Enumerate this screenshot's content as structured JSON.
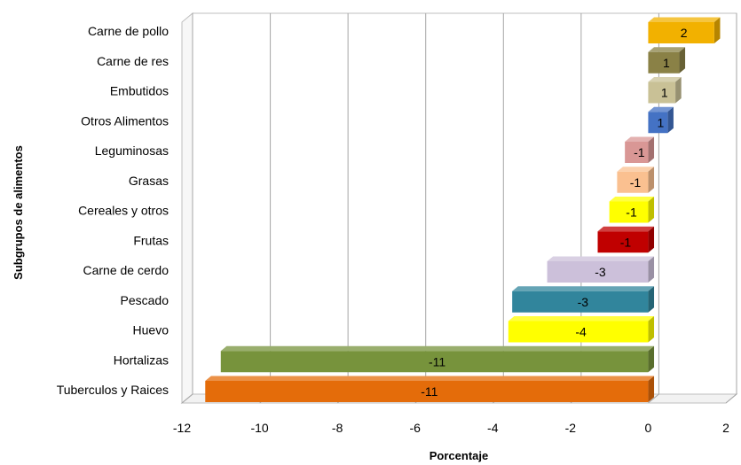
{
  "chart_data": {
    "type": "bar",
    "orientation": "horizontal",
    "style": "3d",
    "categories": [
      "Carne de pollo",
      "Carne de res",
      "Embutidos",
      "Otros Alimentos ",
      "Leguminosas",
      "Grasas",
      "Cereales y otros ",
      "Frutas",
      "Carne de cerdo",
      "Pescado",
      "Huevo",
      "Hortalizas",
      "Tuberculos y Raices"
    ],
    "values": [
      1.7,
      0.8,
      0.7,
      0.5,
      -0.6,
      -0.8,
      -1.0,
      -1.3,
      -2.6,
      -3.5,
      -3.6,
      -11.0,
      -11.4
    ],
    "value_labels": [
      "2",
      "1",
      "1",
      "1",
      "-1",
      "-1",
      "-1",
      "-1",
      "-3",
      "-3",
      "-4",
      "-11",
      "-11"
    ],
    "colors": [
      "#F2B100",
      "#8A8146",
      "#C9C196",
      "#4472C4",
      "#D99795",
      "#FAC090",
      "#FFFF00",
      "#C00000",
      "#CCC0DA",
      "#31859C",
      "#FFFF00",
      "#77933C",
      "#E46C0A"
    ],
    "xlabel": "Porcentaje",
    "ylabel": "Subgrupos de alimentos",
    "xlim": [
      -12,
      2
    ],
    "xticks": [
      -12,
      -10,
      -8,
      -6,
      -4,
      -2,
      0,
      2
    ],
    "xtick_labels": [
      "-12",
      "-10",
      "-8",
      "-6",
      "-4",
      "-2",
      "0",
      "2"
    ],
    "grid": true
  }
}
